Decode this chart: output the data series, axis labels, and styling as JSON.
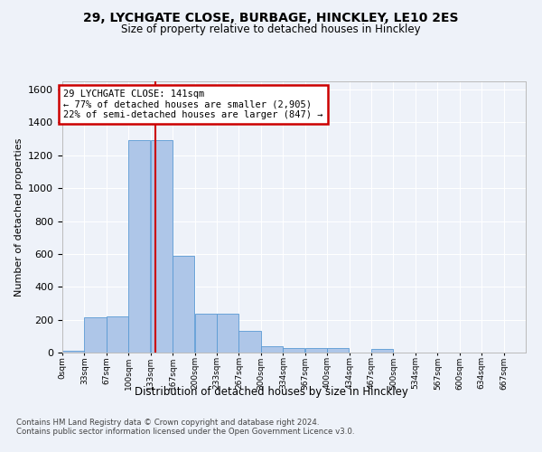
{
  "title1": "29, LYCHGATE CLOSE, BURBAGE, HINCKLEY, LE10 2ES",
  "title2": "Size of property relative to detached houses in Hinckley",
  "xlabel": "Distribution of detached houses by size in Hinckley",
  "ylabel": "Number of detached properties",
  "bin_labels": [
    "0sqm",
    "33sqm",
    "67sqm",
    "100sqm",
    "133sqm",
    "167sqm",
    "200sqm",
    "233sqm",
    "267sqm",
    "300sqm",
    "334sqm",
    "367sqm",
    "400sqm",
    "434sqm",
    "467sqm",
    "500sqm",
    "534sqm",
    "567sqm",
    "600sqm",
    "634sqm",
    "667sqm"
  ],
  "bar_values": [
    10,
    215,
    220,
    1290,
    1290,
    590,
    235,
    235,
    130,
    40,
    25,
    25,
    25,
    0,
    20,
    0,
    0,
    0,
    0,
    0,
    0
  ],
  "bar_color": "#aec6e8",
  "bar_edge_color": "#5a9ad4",
  "ylim": [
    0,
    1650
  ],
  "yticks": [
    0,
    200,
    400,
    600,
    800,
    1000,
    1200,
    1400,
    1600
  ],
  "property_size": 141,
  "annotation_text": "29 LYCHGATE CLOSE: 141sqm\n← 77% of detached houses are smaller (2,905)\n22% of semi-detached houses are larger (847) →",
  "footer1": "Contains HM Land Registry data © Crown copyright and database right 2024.",
  "footer2": "Contains public sector information licensed under the Open Government Licence v3.0.",
  "bg_color": "#eef2f9",
  "plot_bg_color": "#eef2f9",
  "grid_color": "#ffffff",
  "annotation_box_color": "#cc0000",
  "vline_color": "#cc0000",
  "n_bins": 21,
  "bin_width": 33.33
}
